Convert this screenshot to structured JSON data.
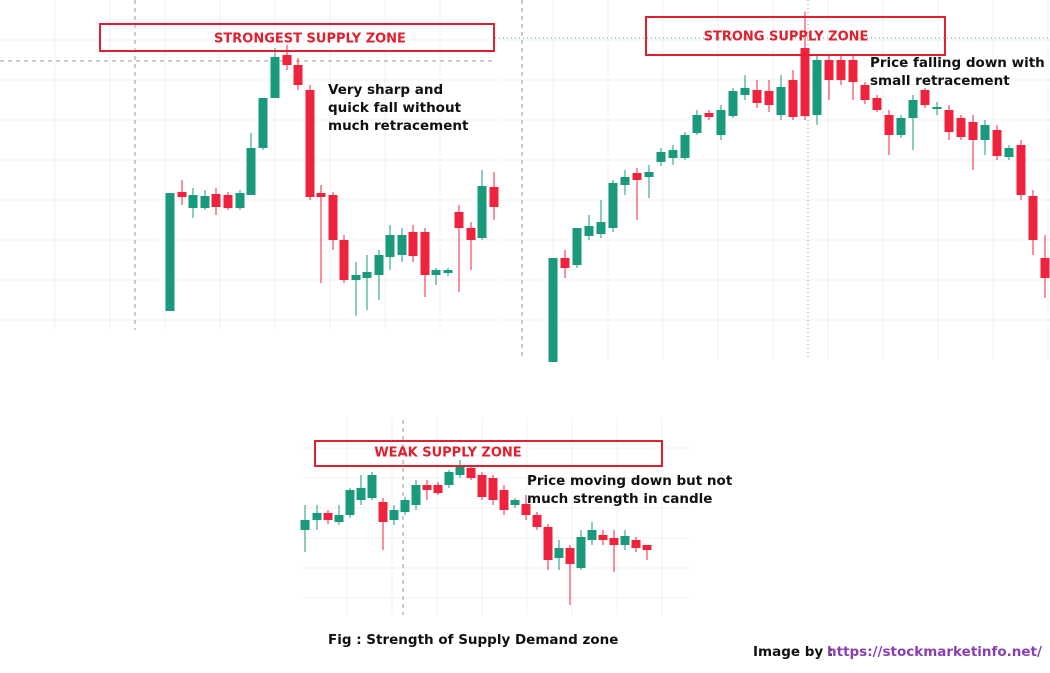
{
  "panels": [
    {
      "zone": "STRONGEST SUPPLY ZONE",
      "note": [
        "Very sharp and",
        "quick fall without",
        "much retracement"
      ]
    },
    {
      "zone": "STRONG SUPPLY ZONE",
      "note": [
        "Price falling down with",
        "small retracement"
      ]
    },
    {
      "zone": "WEAK SUPPLY ZONE",
      "note": [
        "Price moving down but not",
        "much strength in candle"
      ]
    }
  ],
  "caption": "Fig : Strength of Supply Demand zone",
  "credit": {
    "label": "Image by :",
    "url": "https://stockmarketinfo.net/"
  }
}
